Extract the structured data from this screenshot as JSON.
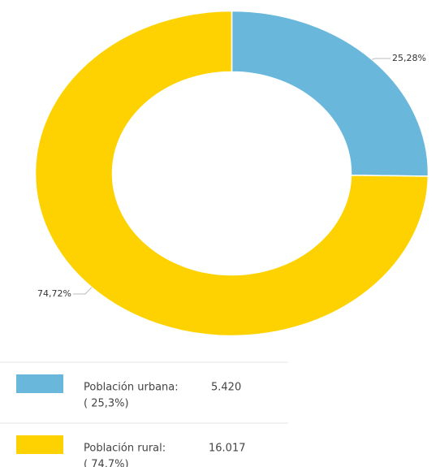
{
  "chart_data": {
    "type": "donut",
    "categories": [
      "Población urbana:",
      "Población rural:"
    ],
    "values": [
      25.28,
      74.72
    ],
    "value_labels": [
      "25,28%",
      "74,72%"
    ],
    "colors": [
      "#6ab7dc",
      "#fdd200"
    ],
    "counts": [
      5420,
      16017
    ],
    "count_labels": [
      "5.420",
      "16.017"
    ],
    "shares": [
      25.3,
      74.7
    ],
    "share_labels": [
      "( 25,3%)",
      "( 74,7%)"
    ]
  }
}
